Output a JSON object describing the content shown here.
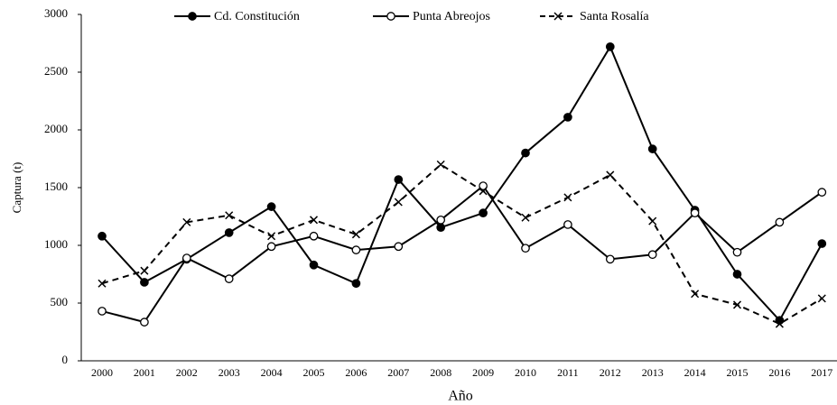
{
  "chart_data": {
    "type": "line",
    "x_label": "Año",
    "y_label": "Captura (t)",
    "categories": [
      "2000",
      "2001",
      "2002",
      "2003",
      "2004",
      "2005",
      "2006",
      "2007",
      "2008",
      "2009",
      "2010",
      "2011",
      "2012",
      "2013",
      "2014",
      "2015",
      "2016",
      "2017"
    ],
    "ylim": [
      0,
      3000
    ],
    "yticks": [
      0,
      500,
      1000,
      1500,
      2000,
      2500,
      3000
    ],
    "series": [
      {
        "name": "Cd. Constitución",
        "color": "#000000",
        "marker": "circle-filled",
        "dash": false,
        "values": [
          1080,
          680,
          880,
          1110,
          1335,
          830,
          670,
          1570,
          1155,
          1280,
          1800,
          2110,
          2720,
          1835,
          1305,
          750,
          350,
          1015
        ]
      },
      {
        "name": "Punta Abreojos",
        "color": "#000000",
        "marker": "circle-open",
        "dash": false,
        "values": [
          430,
          335,
          890,
          710,
          990,
          1080,
          960,
          990,
          1220,
          1515,
          975,
          1180,
          880,
          920,
          1280,
          940,
          1200,
          1460
        ]
      },
      {
        "name": "Santa Rosalía",
        "color": "#000000",
        "marker": "x",
        "dash": true,
        "values": [
          670,
          780,
          1200,
          1260,
          1080,
          1220,
          1095,
          1375,
          1700,
          1470,
          1240,
          1415,
          1610,
          1210,
          580,
          485,
          320,
          540
        ]
      }
    ]
  }
}
